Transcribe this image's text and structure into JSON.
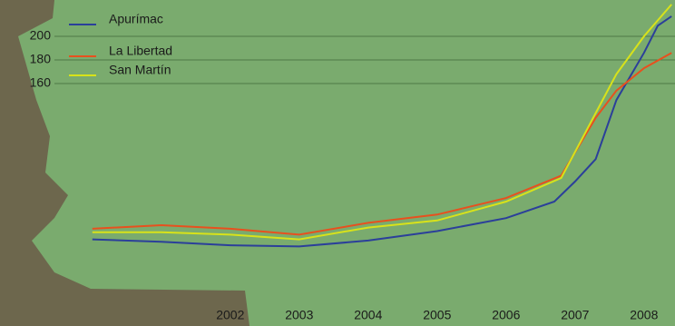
{
  "chart_data": {
    "type": "line",
    "xlim": [
      1999.45,
      2008.45
    ],
    "ylim": [
      0,
      220
    ],
    "xticks": [
      2002,
      2003,
      2004,
      2005,
      2006,
      2007,
      2008
    ],
    "yticks": [
      160,
      180,
      200
    ],
    "grid": true,
    "legend": "top-left",
    "series": [
      {
        "name": "Apurímac",
        "color": "#2b3f9a",
        "x": [
          2000,
          2001,
          2002,
          2003,
          2004,
          2005,
          2006,
          2006.7,
          2007,
          2007.3,
          2007.6,
          2008,
          2008.2,
          2008.4
        ],
        "values": [
          28,
          26,
          23,
          22,
          27,
          35,
          46,
          60,
          77,
          96,
          146,
          186,
          209,
          217
        ]
      },
      {
        "name": "La Libertad",
        "color": "#e8501e",
        "x": [
          2000,
          2001,
          2002,
          2003,
          2004,
          2005,
          2006,
          2006.8,
          2007.3,
          2007.6,
          2008,
          2008.4
        ],
        "values": [
          37,
          40,
          37,
          32,
          42,
          49,
          63,
          82,
          131,
          154,
          173,
          186
        ]
      },
      {
        "name": "San Martín",
        "color": "#d8e21a",
        "x": [
          2000,
          2001,
          2002,
          2003,
          2004,
          2005,
          2006,
          2006.8,
          2007.3,
          2007.6,
          2008,
          2008.4
        ],
        "values": [
          34,
          34,
          32,
          28,
          38,
          44,
          60,
          80,
          135,
          168,
          200,
          227
        ]
      }
    ]
  }
}
